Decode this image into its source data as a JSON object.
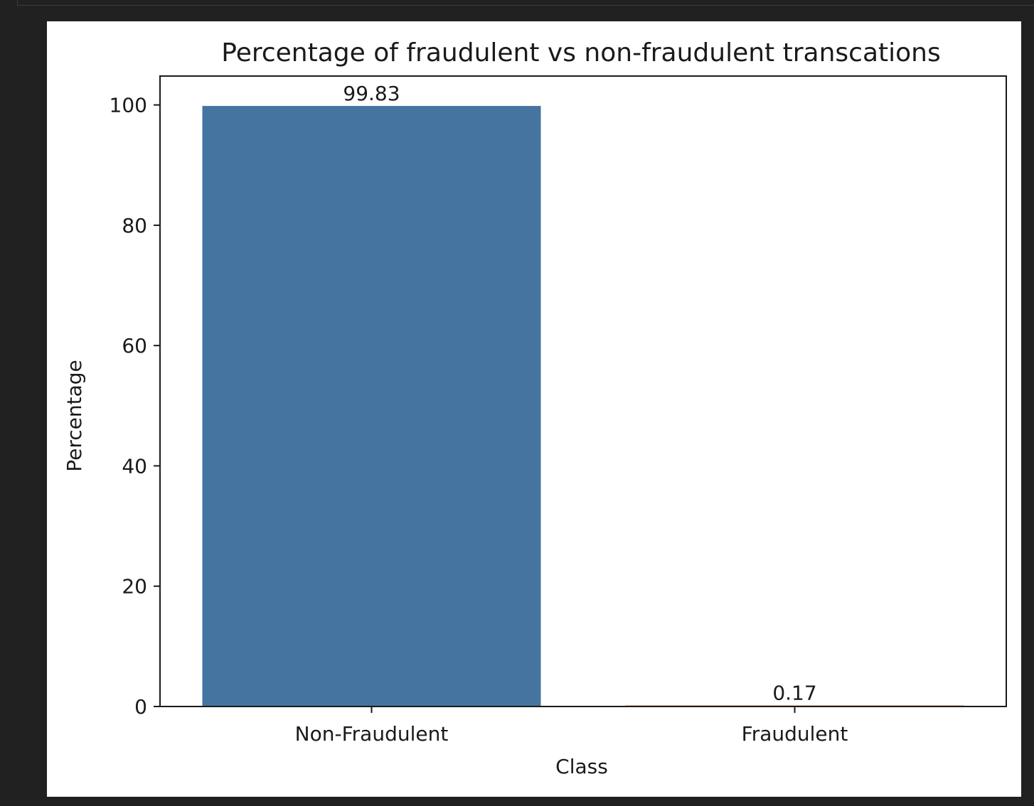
{
  "chart_data": {
    "type": "bar",
    "title": "Percentage of fraudulent vs non-fraudulent transcations",
    "xlabel": "Class",
    "ylabel": "Percentage",
    "categories": [
      "Non-Fraudulent",
      "Fraudulent"
    ],
    "values": [
      99.83,
      0.17
    ],
    "value_labels": [
      "99.83",
      "0.17"
    ],
    "colors": [
      "#4674a0",
      "#d9712a"
    ],
    "ylim": [
      0,
      104.8
    ],
    "yticks": [
      0,
      20,
      40,
      60,
      80,
      100
    ],
    "ytick_labels": [
      "0",
      "20",
      "40",
      "60",
      "80",
      "100"
    ],
    "grid": false,
    "legend": "none"
  }
}
